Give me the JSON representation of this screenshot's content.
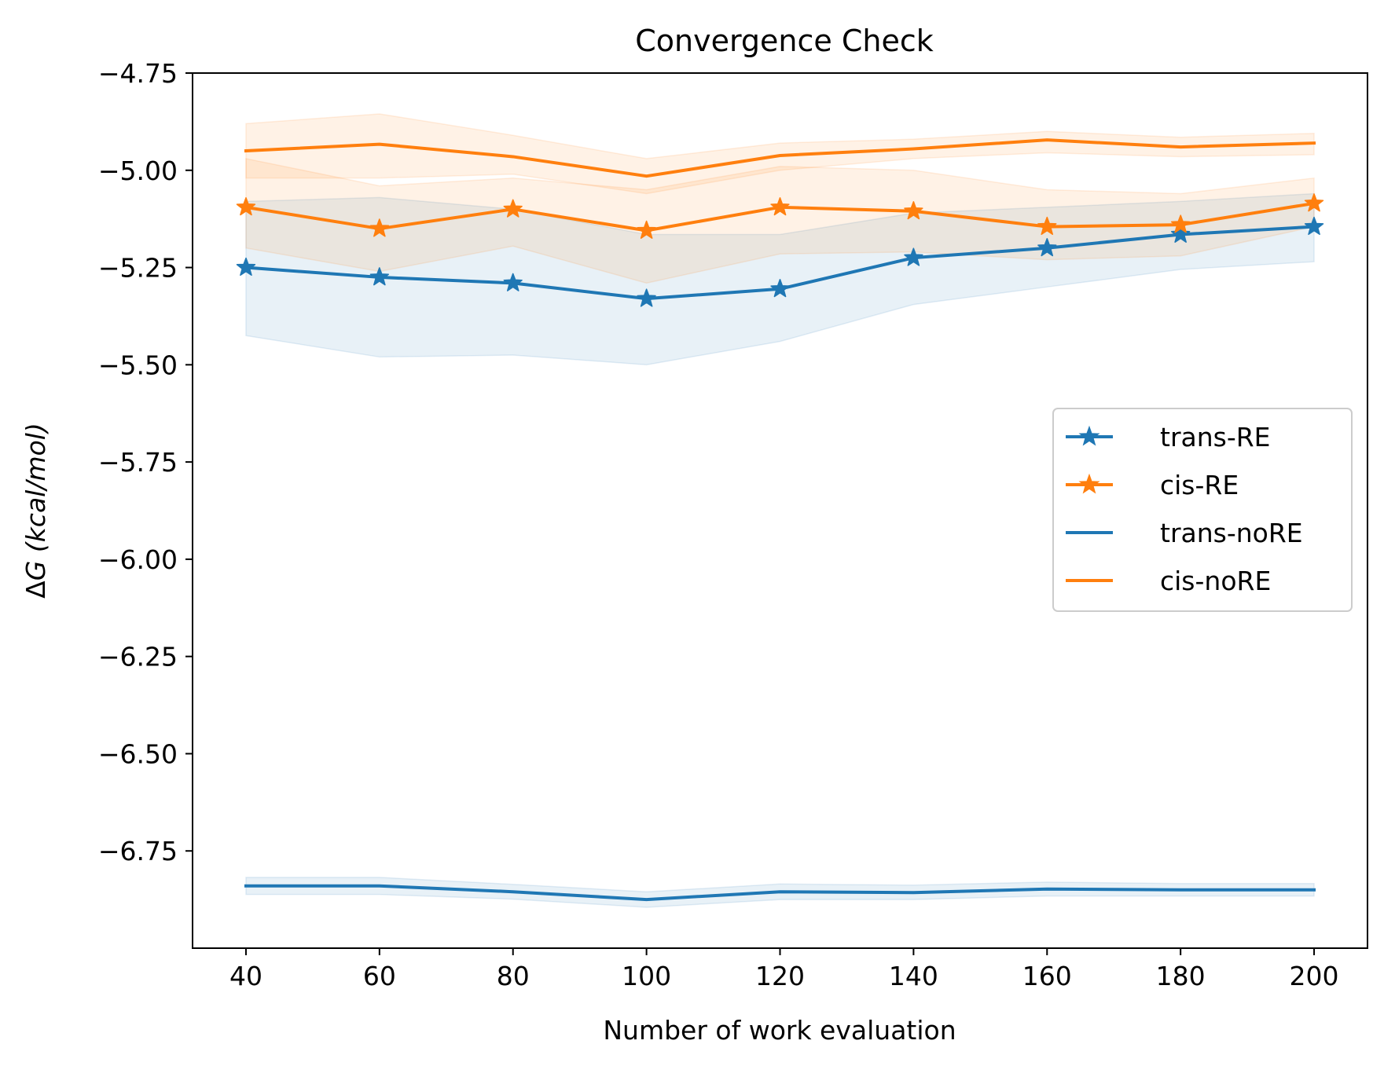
{
  "chart_data": {
    "type": "line",
    "title": "Convergence Check",
    "xlabel": "Number of work evaluation",
    "ylabel": "ΔG (kcal/mol)",
    "ylabel_delta": "Δ",
    "ylabel_g": "G",
    "ylabel_rest": " (kcal/mol)",
    "x": [
      40,
      60,
      80,
      100,
      120,
      140,
      160,
      180,
      200
    ],
    "xlim": [
      32,
      208
    ],
    "ylim": [
      -7.0,
      -4.75
    ],
    "xticks": [
      40,
      60,
      80,
      100,
      120,
      140,
      160,
      180,
      200
    ],
    "xtick_labels": [
      "40",
      "60",
      "80",
      "100",
      "120",
      "140",
      "160",
      "180",
      "200"
    ],
    "yticks": [
      -4.75,
      -5.0,
      -5.25,
      -5.5,
      -5.75,
      -6.0,
      -6.25,
      -6.5,
      -6.75
    ],
    "ytick_labels": [
      "−4.75",
      "−5.00",
      "−5.25",
      "−5.50",
      "−5.75",
      "−6.00",
      "−6.25",
      "−6.50",
      "−6.75"
    ],
    "grid": false,
    "legend_position": "center-right",
    "series": [
      {
        "name": "trans-RE",
        "color": "#1f77b4",
        "marker": "star",
        "values": [
          -5.25,
          -5.275,
          -5.29,
          -5.33,
          -5.305,
          -5.225,
          -5.2,
          -5.165,
          -5.145
        ],
        "band_lower": [
          -5.425,
          -5.48,
          -5.475,
          -5.5,
          -5.44,
          -5.345,
          -5.3,
          -5.255,
          -5.235
        ],
        "band_upper": [
          -5.08,
          -5.07,
          -5.1,
          -5.165,
          -5.165,
          -5.11,
          -5.095,
          -5.08,
          -5.06
        ]
      },
      {
        "name": "cis-RE",
        "color": "#ff7f0e",
        "marker": "star",
        "values": [
          -5.095,
          -5.15,
          -5.1,
          -5.155,
          -5.095,
          -5.105,
          -5.145,
          -5.14,
          -5.085
        ],
        "band_lower": [
          -5.2,
          -5.26,
          -5.195,
          -5.29,
          -5.215,
          -5.21,
          -5.23,
          -5.22,
          -5.145
        ],
        "band_upper": [
          -4.97,
          -5.04,
          -5.02,
          -5.05,
          -4.99,
          -5.0,
          -5.05,
          -5.06,
          -5.02
        ]
      },
      {
        "name": "trans-noRE",
        "color": "#1f77b4",
        "marker": "none",
        "values": [
          -6.84,
          -6.84,
          -6.855,
          -6.875,
          -6.855,
          -6.857,
          -6.848,
          -6.85,
          -6.85
        ],
        "band_lower": [
          -6.862,
          -6.862,
          -6.874,
          -6.895,
          -6.875,
          -6.875,
          -6.866,
          -6.866,
          -6.866
        ],
        "band_upper": [
          -6.818,
          -6.818,
          -6.836,
          -6.855,
          -6.835,
          -6.838,
          -6.83,
          -6.834,
          -6.834
        ]
      },
      {
        "name": "cis-noRE",
        "color": "#ff7f0e",
        "marker": "none",
        "values": [
          -4.95,
          -4.933,
          -4.965,
          -5.015,
          -4.962,
          -4.945,
          -4.922,
          -4.94,
          -4.93
        ],
        "band_lower": [
          -5.02,
          -5.02,
          -5.01,
          -5.06,
          -5.0,
          -4.97,
          -4.955,
          -4.965,
          -4.96
        ],
        "band_upper": [
          -4.88,
          -4.855,
          -4.91,
          -4.97,
          -4.93,
          -4.92,
          -4.9,
          -4.915,
          -4.905
        ]
      }
    ]
  }
}
